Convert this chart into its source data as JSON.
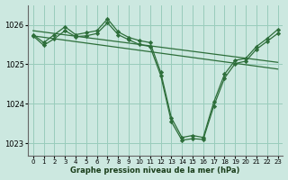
{
  "background_color": "#cce8e0",
  "grid_color": "#99ccbb",
  "line_color": "#2d6e3a",
  "title": "Graphe pression niveau de la mer (hPa)",
  "xlim": [
    -0.5,
    23.5
  ],
  "ylim": [
    1022.7,
    1026.5
  ],
  "yticks": [
    1023,
    1024,
    1025,
    1026
  ],
  "xtick_labels": [
    "0",
    "1",
    "2",
    "3",
    "4",
    "5",
    "6",
    "7",
    "8",
    "9",
    "10",
    "11",
    "12",
    "13",
    "14",
    "15",
    "16",
    "17",
    "18",
    "19",
    "20",
    "21",
    "22",
    "23"
  ],
  "xticks": [
    0,
    1,
    2,
    3,
    4,
    5,
    6,
    7,
    8,
    9,
    10,
    11,
    12,
    13,
    14,
    15,
    16,
    17,
    18,
    19,
    20,
    21,
    22,
    23
  ],
  "series": [
    {
      "x": [
        0,
        23
      ],
      "y": [
        1025.85,
        1025.05
      ],
      "marker": false
    },
    {
      "x": [
        0,
        23
      ],
      "y": [
        1025.72,
        1024.88
      ],
      "marker": false
    },
    {
      "x": [
        0,
        1,
        2,
        3,
        4,
        5,
        6,
        7,
        8,
        9,
        10,
        11,
        12,
        13,
        14,
        15,
        16,
        17,
        18,
        19,
        20,
        21,
        22,
        23
      ],
      "y": [
        1025.75,
        1025.55,
        1025.75,
        1025.95,
        1025.75,
        1025.8,
        1025.85,
        1026.15,
        1025.82,
        1025.68,
        1025.6,
        1025.55,
        1024.8,
        1023.65,
        1023.15,
        1023.2,
        1023.15,
        1024.05,
        1024.75,
        1025.1,
        1025.15,
        1025.45,
        1025.65,
        1025.88
      ],
      "marker": true
    },
    {
      "x": [
        0,
        1,
        2,
        3,
        4,
        5,
        6,
        7,
        8,
        9,
        10,
        11,
        12,
        13,
        14,
        15,
        16,
        17,
        18,
        19,
        20,
        21,
        22,
        23
      ],
      "y": [
        1025.72,
        1025.48,
        1025.65,
        1025.85,
        1025.7,
        1025.72,
        1025.78,
        1026.05,
        1025.75,
        1025.62,
        1025.5,
        1025.45,
        1024.72,
        1023.55,
        1023.08,
        1023.12,
        1023.1,
        1023.95,
        1024.65,
        1025.02,
        1025.08,
        1025.38,
        1025.58,
        1025.78
      ],
      "marker": true
    }
  ]
}
